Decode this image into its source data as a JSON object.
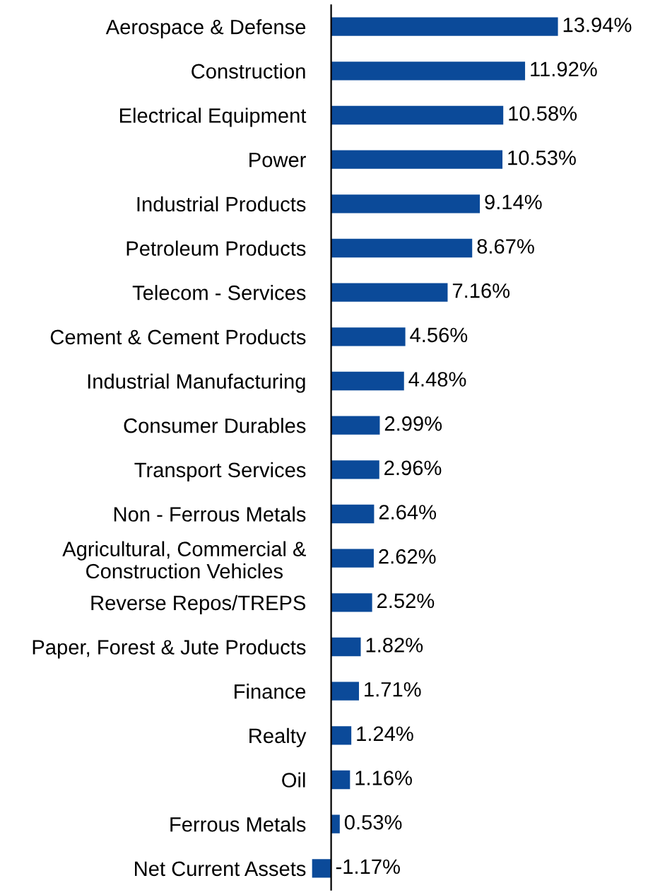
{
  "chart_data": {
    "type": "bar",
    "orientation": "horizontal",
    "color": "#0b4a99",
    "categories": [
      "Aerospace & Defense",
      "Construction",
      "Electrical Equipment",
      "Power",
      "Industrial Products",
      "Petroleum Products",
      "Telecom - Services",
      "Cement & Cement Products",
      "Industrial Manufacturing",
      "Consumer Durables",
      "Transport Services",
      "Non - Ferrous Metals",
      "Agricultural, Commercial &\nConstruction Vehicles",
      "Reverse Repos/TREPS",
      "Paper, Forest & Jute Products",
      "Finance",
      "Realty",
      "Oil",
      "Ferrous Metals",
      "Net Current Assets"
    ],
    "values": [
      13.94,
      11.92,
      10.58,
      10.53,
      9.14,
      8.67,
      7.16,
      4.56,
      4.48,
      2.99,
      2.96,
      2.64,
      2.62,
      2.52,
      1.82,
      1.71,
      1.24,
      1.16,
      0.53,
      -1.17
    ],
    "value_labels": [
      "13.94%",
      "11.92%",
      "10.58%",
      "10.53%",
      "9.14%",
      "8.67%",
      "7.16%",
      "4.56%",
      "4.48%",
      "2.99%",
      "2.96%",
      "2.64%",
      "2.62%",
      "2.52%",
      "1.82%",
      "1.71%",
      "1.24%",
      "1.16%",
      "0.53%",
      "-1.17%"
    ],
    "grid": false,
    "legend": false
  }
}
